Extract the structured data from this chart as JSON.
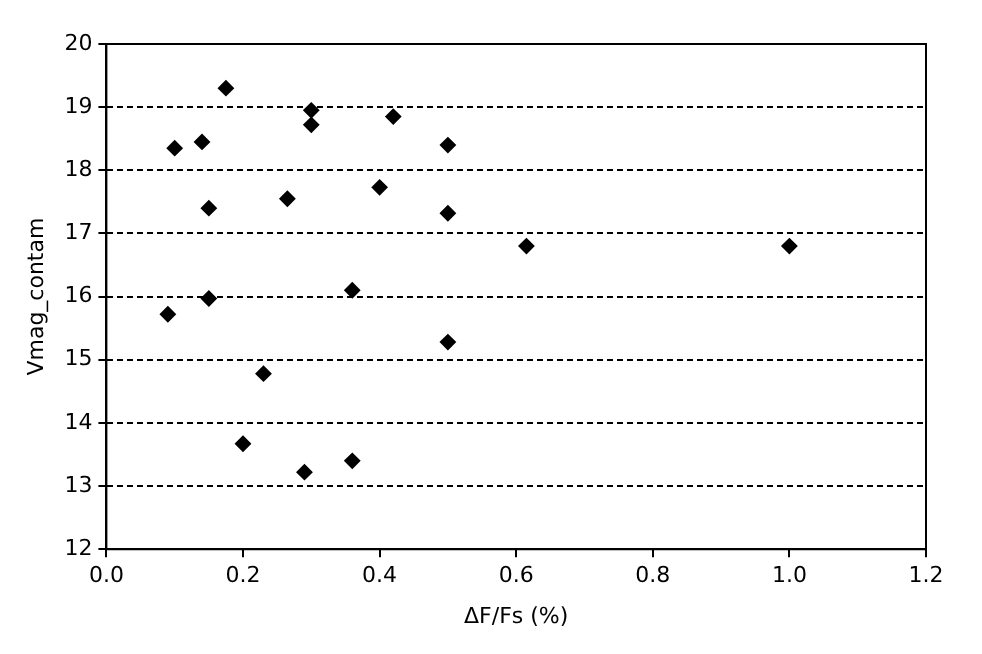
{
  "chart_data": {
    "type": "scatter",
    "xlabel": "ΔF/Fs (%)",
    "ylabel": "Vmag_contam",
    "marker": "diamond",
    "grid": "y",
    "color": "#000000",
    "x": [
      0.09,
      0.1,
      0.14,
      0.15,
      0.15,
      0.175,
      0.2,
      0.23,
      0.265,
      0.29,
      0.3,
      0.3,
      0.36,
      0.36,
      0.4,
      0.42,
      0.5,
      0.5,
      0.5,
      0.615,
      1.0
    ],
    "values": [
      15.72,
      18.35,
      18.45,
      17.4,
      15.97,
      19.3,
      13.67,
      14.78,
      17.55,
      13.22,
      18.95,
      18.72,
      16.1,
      13.4,
      17.73,
      18.85,
      18.4,
      17.32,
      15.28,
      16.8,
      16.8
    ],
    "xlim": [
      0,
      1.2
    ],
    "xticks": [
      {
        "value": 0,
        "label": "0.0"
      },
      0.2,
      0.4,
      0.6,
      0.8,
      {
        "value": 1,
        "label": "1.0"
      },
      1.2
    ],
    "ylim": [
      12,
      20
    ],
    "yticks": [
      12,
      13,
      14,
      15,
      16,
      17,
      18,
      19,
      20
    ]
  }
}
